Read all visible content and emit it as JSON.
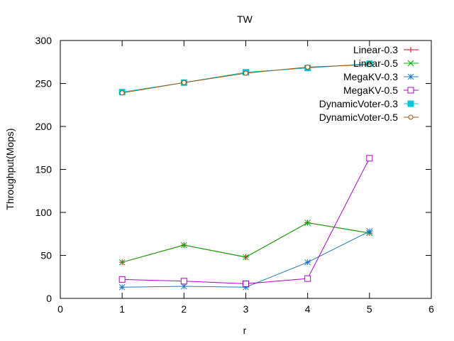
{
  "chart_data": {
    "type": "line",
    "title": "TW",
    "xlabel": "r",
    "ylabel": "Throughput(Mops)",
    "xlim": [
      0,
      6
    ],
    "ylim": [
      0,
      300
    ],
    "xticks": [
      0,
      1,
      2,
      3,
      4,
      5,
      6
    ],
    "yticks": [
      0,
      50,
      100,
      150,
      200,
      250,
      300
    ],
    "grid": false,
    "legend_position": "top-right",
    "series": [
      {
        "name": "Linear-0.3",
        "color": "#d0021b",
        "marker": "plus",
        "x": [
          1,
          2,
          3,
          4,
          5
        ],
        "y": [
          42,
          62,
          48,
          88,
          76
        ]
      },
      {
        "name": "Linear-0.5",
        "color": "#00b000",
        "marker": "x",
        "x": [
          1,
          2,
          3,
          4,
          5
        ],
        "y": [
          42,
          62,
          48,
          88,
          76
        ]
      },
      {
        "name": "MegaKV-0.3",
        "color": "#1e78c8",
        "marker": "star",
        "x": [
          1,
          2,
          3,
          4,
          5
        ],
        "y": [
          13,
          14,
          13,
          42,
          78
        ]
      },
      {
        "name": "MegaKV-0.5",
        "color": "#b000d0",
        "marker": "open-square",
        "x": [
          1,
          2,
          3,
          4,
          5
        ],
        "y": [
          22,
          20,
          17,
          23,
          163
        ]
      },
      {
        "name": "DynamicVoter-0.3",
        "color": "#00c8d8",
        "marker": "filled-square",
        "x": [
          1,
          2,
          3,
          4,
          5
        ],
        "y": [
          240,
          251,
          263,
          268,
          273
        ]
      },
      {
        "name": "DynamicVoter-0.5",
        "color": "#a05000",
        "marker": "open-circle",
        "x": [
          1,
          2,
          3,
          4,
          5
        ],
        "y": [
          239,
          251,
          262,
          269,
          272
        ]
      }
    ]
  }
}
